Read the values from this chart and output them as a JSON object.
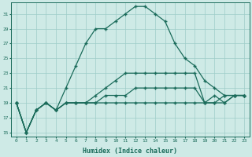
{
  "xlabel": "Humidex (Indice chaleur)",
  "bg_color": "#ceeae6",
  "grid_color": "#9ecdc8",
  "line_color": "#1a6b5a",
  "x_values": [
    0,
    1,
    2,
    3,
    4,
    5,
    6,
    7,
    8,
    9,
    10,
    11,
    12,
    13,
    14,
    15,
    16,
    17,
    18,
    19,
    20,
    21,
    22,
    23
  ],
  "series1": [
    19,
    15,
    18,
    19,
    18,
    21,
    24,
    27,
    29,
    29,
    30,
    31,
    32,
    32,
    31,
    30,
    27,
    25,
    24,
    22,
    21,
    20,
    20,
    20
  ],
  "series2": [
    19,
    15,
    18,
    19,
    18,
    19,
    19,
    19,
    20,
    21,
    22,
    23,
    23,
    23,
    23,
    23,
    23,
    23,
    23,
    19,
    19,
    20,
    20,
    20
  ],
  "series3": [
    19,
    15,
    18,
    19,
    18,
    19,
    19,
    19,
    19,
    20,
    20,
    20,
    21,
    21,
    21,
    21,
    21,
    21,
    21,
    19,
    20,
    19,
    20,
    20
  ],
  "series4": [
    19,
    15,
    18,
    19,
    18,
    19,
    19,
    19,
    19,
    19,
    19,
    19,
    19,
    19,
    19,
    19,
    19,
    19,
    19,
    19,
    19,
    19,
    20,
    20
  ],
  "ylim": [
    14.5,
    32.5
  ],
  "yticks": [
    15,
    17,
    19,
    21,
    23,
    25,
    27,
    29,
    31
  ],
  "xlim": [
    -0.5,
    23.5
  ]
}
